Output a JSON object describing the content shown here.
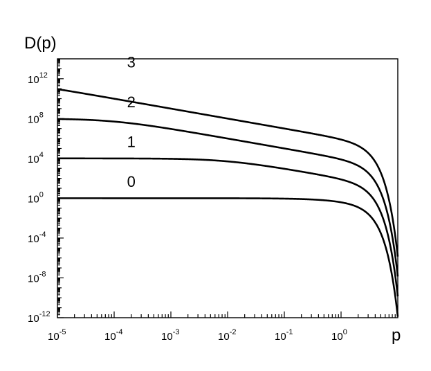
{
  "chart_data": {
    "type": "line",
    "xscale": "log",
    "yscale": "log",
    "xlabel": "p",
    "ylabel": "D(p)",
    "xlim": [
      1e-05,
      10
    ],
    "ylim": [
      1e-12,
      100000000000000.0
    ],
    "x_ticks": [
      {
        "base": "10",
        "exp": "-5",
        "value": 1e-05
      },
      {
        "base": "10",
        "exp": "-4",
        "value": 0.0001
      },
      {
        "base": "10",
        "exp": "-3",
        "value": 0.001
      },
      {
        "base": "10",
        "exp": "-2",
        "value": 0.01
      },
      {
        "base": "10",
        "exp": "-1",
        "value": 0.1
      },
      {
        "base": "10",
        "exp": "0",
        "value": 1
      }
    ],
    "y_ticks": [
      {
        "base": "10",
        "exp": "-12",
        "value": 1e-12
      },
      {
        "base": "10",
        "exp": "-8",
        "value": 1e-08
      },
      {
        "base": "10",
        "exp": "-4",
        "value": 0.0001
      },
      {
        "base": "10",
        "exp": "0",
        "value": 1
      },
      {
        "base": "10",
        "exp": "4",
        "value": 10000.0
      },
      {
        "base": "10",
        "exp": "8",
        "value": 100000000.0
      },
      {
        "base": "10",
        "exp": "12",
        "value": 1000000000000.0
      }
    ],
    "grid": false,
    "legend": "none",
    "series": [
      {
        "label": "0",
        "plateau": 1,
        "label_x": 0.0002,
        "label_y": 50.0
      },
      {
        "label": "1",
        "plateau": 10000.0,
        "label_x": 0.0002,
        "label_y": 500000.0
      },
      {
        "label": "2",
        "plateau": 100000000.0,
        "label_x": 0.0002,
        "label_y": 5000000000.0
      },
      {
        "label": "3",
        "plateau": 1000000000000.0,
        "label_x": 0.0002,
        "label_y": 50000000000000.0
      }
    ]
  }
}
